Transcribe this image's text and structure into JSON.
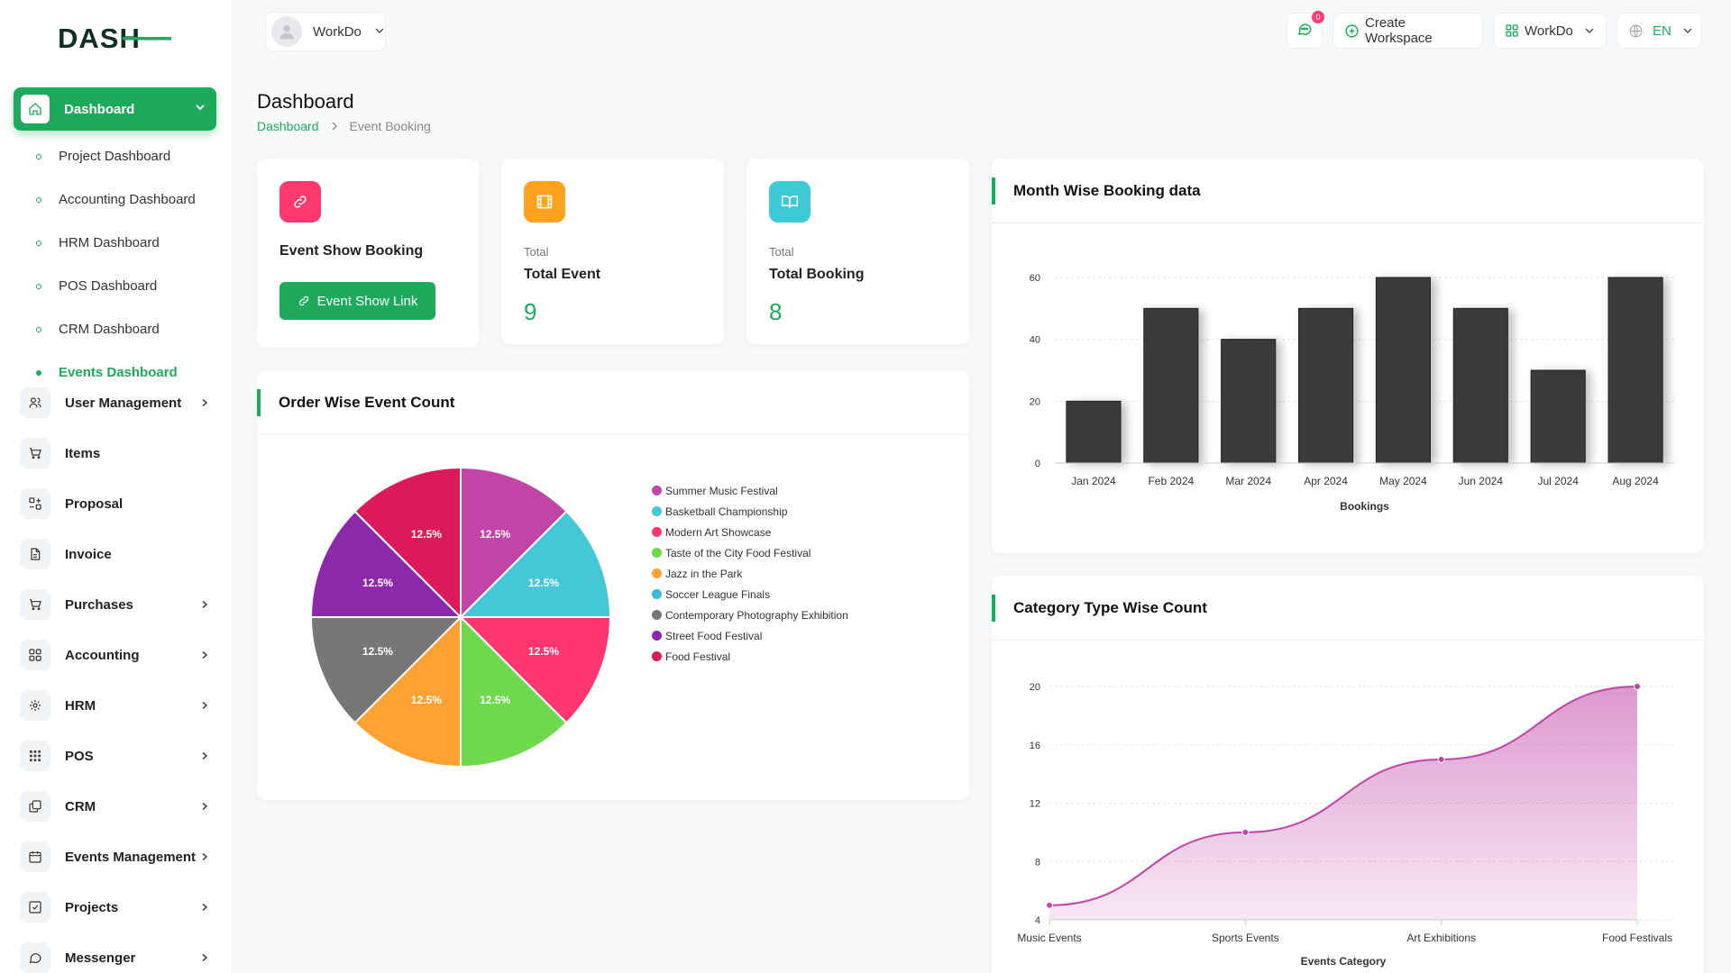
{
  "brand": {
    "logo_text": "DASH",
    "accent": "#1eaa5c"
  },
  "topbar": {
    "workspace_selector": "WorkDo",
    "notification_count": "0",
    "create_workspace": "Create Workspace",
    "workspace_menu": "WorkDo",
    "language": "EN"
  },
  "sidebar": {
    "active": {
      "label": "Dashboard",
      "icon": "home-icon"
    },
    "sub_items": [
      {
        "label": "Project Dashboard"
      },
      {
        "label": "Accounting Dashboard"
      },
      {
        "label": "HRM Dashboard"
      },
      {
        "label": "POS Dashboard"
      },
      {
        "label": "CRM Dashboard"
      },
      {
        "label": "Events Dashboard"
      }
    ],
    "items": [
      {
        "label": "User Management",
        "icon": "users-icon"
      },
      {
        "label": "Items",
        "icon": "cart-icon"
      },
      {
        "label": "Proposal",
        "icon": "proposal-icon"
      },
      {
        "label": "Invoice",
        "icon": "file-icon"
      },
      {
        "label": "Purchases",
        "icon": "cart-icon"
      },
      {
        "label": "Accounting",
        "icon": "grid-icon"
      },
      {
        "label": "HRM",
        "icon": "hrm-icon"
      },
      {
        "label": "POS",
        "icon": "dots-grid-icon"
      },
      {
        "label": "CRM",
        "icon": "crm-icon"
      },
      {
        "label": "Events Management",
        "icon": "calendar-icon"
      },
      {
        "label": "Projects",
        "icon": "checkbox-icon"
      },
      {
        "label": "Messenger",
        "icon": "message-icon"
      }
    ]
  },
  "page": {
    "title": "Dashboard",
    "breadcrumb": [
      "Dashboard",
      "Event Booking"
    ]
  },
  "cards": {
    "event_show": {
      "title": "Event Show Booking",
      "button": "Event Show Link",
      "color": "#ff3a6e"
    },
    "total_event": {
      "small": "Total",
      "title": "Total Event",
      "value": "9",
      "color": "#ffa21d"
    },
    "total_booking": {
      "small": "Total",
      "title": "Total Booking",
      "value": "8",
      "color": "#3ec9d6"
    }
  },
  "chart_data": [
    {
      "type": "pie",
      "title": "Order Wise Event Count",
      "labels": [
        "Summer Music Festival",
        "Basketball Championship",
        "Modern Art Showcase",
        "Taste of the City Food Festival",
        "Jazz in the Park",
        "Soccer League Finals",
        "Contemporary Photography Exhibition",
        "Street Food Festival",
        "Food Festival"
      ],
      "values": [
        12.5,
        12.5,
        12.5,
        12.5,
        12.5,
        0,
        12.5,
        12.5,
        12.5
      ],
      "slice_labels": [
        "12.5%",
        "12.5%",
        "12.5%",
        "12.5%",
        "12.5%",
        "",
        "12.5%",
        "12.5%",
        "12.5%"
      ],
      "colors": [
        "#c144a7",
        "#45c8d6",
        "#ff3670",
        "#6fd94e",
        "#ffa133",
        "#3cbbd9",
        "#777777",
        "#8c28aa",
        "#dc1a5a"
      ],
      "legend": "right"
    },
    {
      "type": "bar",
      "title": "Month Wise Booking data",
      "categories": [
        "Jan 2024",
        "Feb 2024",
        "Mar 2024",
        "Apr 2024",
        "May 2024",
        "Jun 2024",
        "Jul 2024",
        "Aug 2024"
      ],
      "values": [
        20,
        50,
        40,
        50,
        60,
        50,
        30,
        60
      ],
      "xlabel": "Bookings",
      "ylabel": "",
      "yticks": [
        0,
        20,
        40,
        60
      ],
      "ylim": [
        0,
        60
      ],
      "color": "#3a3a3a",
      "grid": true
    },
    {
      "type": "area",
      "title": "Category Type Wise Count",
      "categories": [
        "Music Events",
        "Sports Events",
        "Art Exhibitions",
        "Food Festivals"
      ],
      "values": [
        5,
        10,
        15,
        20
      ],
      "xlabel": "Events Category",
      "ylabel": "",
      "yticks": [
        4,
        8,
        12,
        16,
        20
      ],
      "ylim": [
        4,
        20
      ],
      "color": "#c144a7",
      "grid": true
    }
  ]
}
